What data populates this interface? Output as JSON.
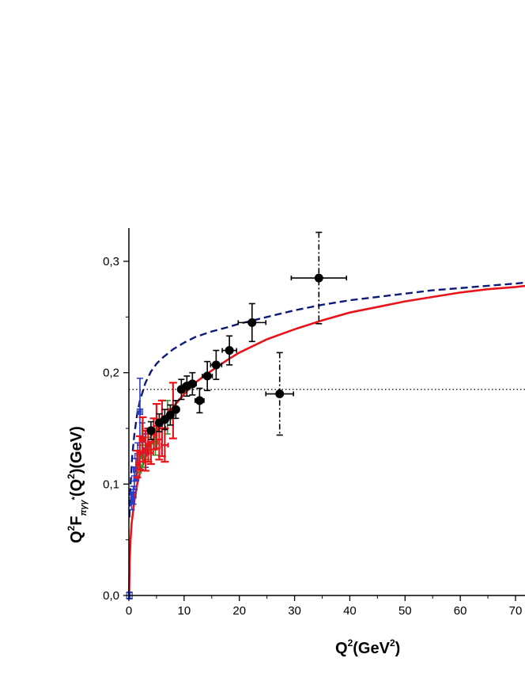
{
  "chart_data": {
    "type": "scatter",
    "title": "",
    "xlabel": {
      "base": "Q",
      "sup": "2",
      "rest": "(GeV",
      "sup2": "2",
      "close": ")"
    },
    "ylabel": {
      "p1": "Q",
      "sup1": "2",
      "p2": "F",
      "sub": "πγγ",
      "sub2": "*",
      "p3": "(Q",
      "sup2": "2",
      "p4": ")(GeV)"
    },
    "xlim": [
      0,
      72
    ],
    "ylim": [
      0,
      0.33
    ],
    "x_ticks": [
      {
        "value": 0,
        "label": "0"
      },
      {
        "value": 10,
        "label": "10"
      },
      {
        "value": 20,
        "label": "20"
      },
      {
        "value": 30,
        "label": "30"
      },
      {
        "value": 40,
        "label": "40"
      },
      {
        "value": 50,
        "label": "50"
      },
      {
        "value": 60,
        "label": "60"
      },
      {
        "value": 70,
        "label": "70"
      }
    ],
    "y_ticks": [
      {
        "value": 0.0,
        "label": "0,0"
      },
      {
        "value": 0.1,
        "label": "0,1"
      },
      {
        "value": 0.2,
        "label": "0,2"
      },
      {
        "value": 0.3,
        "label": "0,3"
      }
    ],
    "reference_line": {
      "y": 0.185,
      "style": "dotted",
      "color": "#000000"
    },
    "curves": [
      {
        "style": "solid",
        "color": "#e8141b",
        "points": [
          [
            0.05,
            0.0
          ],
          [
            0.15,
            0.03
          ],
          [
            0.3,
            0.05
          ],
          [
            0.5,
            0.065
          ],
          [
            1,
            0.085
          ],
          [
            1.5,
            0.1
          ],
          [
            2,
            0.11
          ],
          [
            3,
            0.124
          ],
          [
            4,
            0.136
          ],
          [
            5,
            0.147
          ],
          [
            6,
            0.156
          ],
          [
            8,
            0.169
          ],
          [
            10,
            0.181
          ],
          [
            12,
            0.191
          ],
          [
            15,
            0.202
          ],
          [
            18,
            0.212
          ],
          [
            20,
            0.218
          ],
          [
            25,
            0.23
          ],
          [
            30,
            0.239
          ],
          [
            35,
            0.247
          ],
          [
            40,
            0.254
          ],
          [
            45,
            0.259
          ],
          [
            50,
            0.264
          ],
          [
            55,
            0.268
          ],
          [
            60,
            0.272
          ],
          [
            65,
            0.275
          ],
          [
            70,
            0.277
          ],
          [
            72,
            0.278
          ]
        ]
      },
      {
        "style": "dashed",
        "color": "#0d1a78",
        "points": [
          [
            0.1,
            0.07
          ],
          [
            0.3,
            0.1
          ],
          [
            0.6,
            0.125
          ],
          [
            1,
            0.145
          ],
          [
            1.5,
            0.163
          ],
          [
            2,
            0.175
          ],
          [
            3,
            0.191
          ],
          [
            4,
            0.201
          ],
          [
            5,
            0.208
          ],
          [
            6,
            0.213
          ],
          [
            8,
            0.221
          ],
          [
            10,
            0.227
          ],
          [
            12,
            0.232
          ],
          [
            15,
            0.237
          ],
          [
            18,
            0.241
          ],
          [
            20,
            0.244
          ],
          [
            25,
            0.25
          ],
          [
            30,
            0.256
          ],
          [
            35,
            0.261
          ],
          [
            40,
            0.265
          ],
          [
            45,
            0.268
          ],
          [
            50,
            0.271
          ],
          [
            55,
            0.274
          ],
          [
            60,
            0.276
          ],
          [
            65,
            0.278
          ],
          [
            70,
            0.28
          ],
          [
            72,
            0.281
          ]
        ]
      }
    ],
    "series": [
      {
        "marker": "circle",
        "color": "#000000",
        "errbar_style": "solid",
        "points": [
          {
            "x": 4.0,
            "y": 0.148,
            "dx": 0.5,
            "dy": 0.008
          },
          {
            "x": 5.5,
            "y": 0.155,
            "dx": 0.5,
            "dy": 0.008
          },
          {
            "x": 6.5,
            "y": 0.158,
            "dx": 0.5,
            "dy": 0.009
          },
          {
            "x": 7.5,
            "y": 0.162,
            "dx": 0.5,
            "dy": 0.009
          },
          {
            "x": 8.5,
            "y": 0.167,
            "dx": 0.6,
            "dy": 0.008
          },
          {
            "x": 9.5,
            "y": 0.185,
            "dx": 0.6,
            "dy": 0.009
          },
          {
            "x": 10.5,
            "y": 0.188,
            "dx": 0.7,
            "dy": 0.009
          },
          {
            "x": 11.5,
            "y": 0.19,
            "dx": 0.7,
            "dy": 0.01
          },
          {
            "x": 12.8,
            "y": 0.175,
            "dx": 0.8,
            "dy": 0.011
          },
          {
            "x": 14.2,
            "y": 0.197,
            "dx": 0.9,
            "dy": 0.013
          },
          {
            "x": 15.8,
            "y": 0.207,
            "dx": 1.0,
            "dy": 0.013
          },
          {
            "x": 18.2,
            "y": 0.22,
            "dx": 1.3,
            "dy": 0.013
          },
          {
            "x": 22.3,
            "y": 0.245,
            "dx": 2.5,
            "dy": 0.017
          }
        ]
      },
      {
        "marker": "circle",
        "color": "#000000",
        "errbar_style": "dashdot",
        "points": [
          {
            "x": 27.3,
            "y": 0.181,
            "dx": 2.5,
            "dy": 0.037
          },
          {
            "x": 34.4,
            "y": 0.285,
            "dx": 5.0,
            "dy": 0.041
          }
        ]
      },
      {
        "marker": "none",
        "color": "#e8141b",
        "errbar_style": "solid",
        "points": [
          {
            "x": 1.5,
            "y": 0.118,
            "dx": 0.2,
            "dy": 0.012
          },
          {
            "x": 2.0,
            "y": 0.128,
            "dx": 0.2,
            "dy": 0.015
          },
          {
            "x": 2.5,
            "y": 0.14,
            "dx": 0.3,
            "dy": 0.02
          },
          {
            "x": 3.0,
            "y": 0.13,
            "dx": 0.3,
            "dy": 0.018
          },
          {
            "x": 3.5,
            "y": 0.135,
            "dx": 0.3,
            "dy": 0.015
          },
          {
            "x": 4.0,
            "y": 0.128,
            "dx": 0.4,
            "dy": 0.01
          },
          {
            "x": 4.5,
            "y": 0.145,
            "dx": 0.4,
            "dy": 0.014
          },
          {
            "x": 5.0,
            "y": 0.152,
            "dx": 0.5,
            "dy": 0.02
          },
          {
            "x": 5.5,
            "y": 0.14,
            "dx": 0.5,
            "dy": 0.018
          },
          {
            "x": 6.0,
            "y": 0.15,
            "dx": 0.6,
            "dy": 0.025
          },
          {
            "x": 6.5,
            "y": 0.135,
            "dx": 0.6,
            "dy": 0.015
          },
          {
            "x": 8.0,
            "y": 0.166,
            "dx": 0.8,
            "dy": 0.025
          }
        ]
      },
      {
        "marker": "square-open",
        "color": "#2a3cc8",
        "errbar_style": "solid",
        "points": [
          {
            "x": 0.1,
            "y": 0.0,
            "dx": 0.1,
            "dy": 0.003
          },
          {
            "x": 0.5,
            "y": 0.085,
            "dx": 0.1,
            "dy": 0.008
          },
          {
            "x": 0.8,
            "y": 0.09,
            "dx": 0.1,
            "dy": 0.008
          },
          {
            "x": 1.0,
            "y": 0.105,
            "dx": 0.1,
            "dy": 0.01
          },
          {
            "x": 1.3,
            "y": 0.113,
            "dx": 0.1,
            "dy": 0.01
          },
          {
            "x": 1.6,
            "y": 0.125,
            "dx": 0.1,
            "dy": 0.012
          },
          {
            "x": 2.0,
            "y": 0.165,
            "dx": 0.2,
            "dy": 0.03
          },
          {
            "x": 2.4,
            "y": 0.14,
            "dx": 0.2,
            "dy": 0.015
          },
          {
            "x": 3.0,
            "y": 0.13,
            "dx": 0.2,
            "dy": 0.015
          }
        ]
      },
      {
        "marker": "triangle-open",
        "color": "#2f9e2f",
        "errbar_style": "solid",
        "points": [
          {
            "x": 1.8,
            "y": 0.118,
            "dx": 0.2,
            "dy": 0.008
          },
          {
            "x": 2.5,
            "y": 0.125,
            "dx": 0.2,
            "dy": 0.01
          },
          {
            "x": 3.5,
            "y": 0.132,
            "dx": 0.3,
            "dy": 0.01
          },
          {
            "x": 4.8,
            "y": 0.138,
            "dx": 0.4,
            "dy": 0.012
          },
          {
            "x": 7.0,
            "y": 0.16,
            "dx": 0.5,
            "dy": 0.015
          }
        ]
      }
    ]
  }
}
